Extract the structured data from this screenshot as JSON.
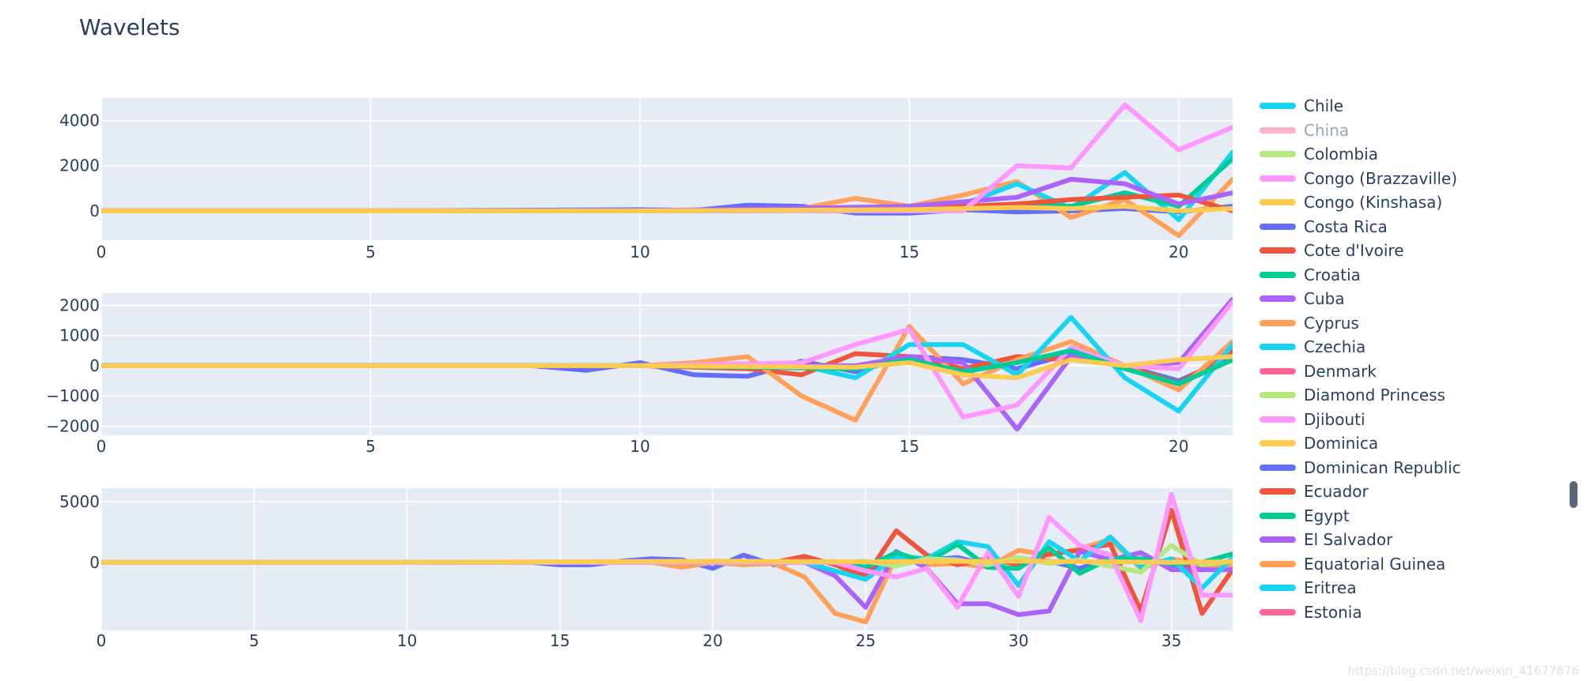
{
  "title": "Wavelets",
  "watermark": "https://blog.csdn.net/weixin_41677876",
  "colors": {
    "plot_bg": "#e5ecf6",
    "grid": "#ffffff",
    "text": "#2a3f5f"
  },
  "legend": {
    "items": [
      {
        "name": "Chile",
        "color": "#19d3f3",
        "hidden": false
      },
      {
        "name": "China",
        "color": "#ff6692",
        "hidden": true
      },
      {
        "name": "Colombia",
        "color": "#b6e880",
        "hidden": false
      },
      {
        "name": "Congo (Brazzaville)",
        "color": "#ff97ff",
        "hidden": false
      },
      {
        "name": "Congo (Kinshasa)",
        "color": "#fecb52",
        "hidden": false
      },
      {
        "name": "Costa Rica",
        "color": "#636efa",
        "hidden": false
      },
      {
        "name": "Cote d'Ivoire",
        "color": "#ef553b",
        "hidden": false
      },
      {
        "name": "Croatia",
        "color": "#00cc96",
        "hidden": false
      },
      {
        "name": "Cuba",
        "color": "#ab63fa",
        "hidden": false
      },
      {
        "name": "Cyprus",
        "color": "#ffa15a",
        "hidden": false
      },
      {
        "name": "Czechia",
        "color": "#19d3f3",
        "hidden": false
      },
      {
        "name": "Denmark",
        "color": "#ff6692",
        "hidden": false
      },
      {
        "name": "Diamond Princess",
        "color": "#b6e880",
        "hidden": false
      },
      {
        "name": "Djibouti",
        "color": "#ff97ff",
        "hidden": false
      },
      {
        "name": "Dominica",
        "color": "#fecb52",
        "hidden": false
      },
      {
        "name": "Dominican Republic",
        "color": "#636efa",
        "hidden": false
      },
      {
        "name": "Ecuador",
        "color": "#ef553b",
        "hidden": false
      },
      {
        "name": "Egypt",
        "color": "#00cc96",
        "hidden": false
      },
      {
        "name": "El Salvador",
        "color": "#ab63fa",
        "hidden": false
      },
      {
        "name": "Equatorial Guinea",
        "color": "#ffa15a",
        "hidden": false
      },
      {
        "name": "Eritrea",
        "color": "#19d3f3",
        "hidden": false
      },
      {
        "name": "Estonia",
        "color": "#ff6692",
        "hidden": false
      }
    ]
  },
  "chart_data": [
    {
      "type": "line",
      "x_range": [
        0,
        21
      ],
      "y_range": [
        -1300,
        5000
      ],
      "x_ticks": [
        0,
        5,
        10,
        15,
        20
      ],
      "y_ticks": [
        0,
        2000,
        4000
      ],
      "y_tick_labels": [
        "0",
        "2000",
        "4000"
      ],
      "series": [
        {
          "name": "Costa Rica",
          "color": "#636efa",
          "x": [
            0,
            5,
            10,
            11,
            12,
            13,
            14,
            15,
            16,
            17,
            18,
            19,
            20,
            21
          ],
          "y": [
            0,
            0,
            50,
            20,
            250,
            200,
            -100,
            -100,
            50,
            -50,
            0,
            100,
            -50,
            200
          ]
        },
        {
          "name": "Cyprus",
          "color": "#ffa15a",
          "x": [
            0,
            5,
            10,
            12,
            13,
            14,
            15,
            16,
            17,
            18,
            19,
            20,
            21
          ],
          "y": [
            0,
            0,
            0,
            50,
            100,
            550,
            200,
            700,
            1300,
            -300,
            500,
            -1100,
            1400
          ]
        },
        {
          "name": "Chile",
          "color": "#19d3f3",
          "x": [
            0,
            10,
            14,
            15,
            16,
            17,
            18,
            19,
            20,
            21
          ],
          "y": [
            0,
            0,
            50,
            150,
            300,
            1200,
            100,
            1700,
            -400,
            2600
          ]
        },
        {
          "name": "Croatia",
          "color": "#00cc96",
          "x": [
            0,
            10,
            14,
            15,
            16,
            17,
            18,
            19,
            20,
            21
          ],
          "y": [
            0,
            0,
            0,
            100,
            200,
            300,
            200,
            800,
            200,
            2300
          ]
        },
        {
          "name": "Cote d'Ivoire",
          "color": "#ef553b",
          "x": [
            0,
            10,
            15,
            16,
            17,
            18,
            19,
            20,
            21
          ],
          "y": [
            0,
            0,
            100,
            200,
            300,
            500,
            600,
            700,
            0
          ]
        },
        {
          "name": "Cuba",
          "color": "#ab63fa",
          "x": [
            0,
            10,
            15,
            16,
            17,
            18,
            19,
            20,
            21
          ],
          "y": [
            0,
            0,
            200,
            400,
            600,
            1400,
            1200,
            300,
            800
          ]
        },
        {
          "name": "Congo (Brazzaville)",
          "color": "#ff97ff",
          "x": [
            0,
            10,
            15,
            16,
            17,
            18,
            19,
            20,
            21
          ],
          "y": [
            0,
            0,
            0,
            0,
            2000,
            1900,
            4700,
            2700,
            3700
          ]
        },
        {
          "name": "Congo (Kinshasa)",
          "color": "#fecb52",
          "x": [
            0,
            10,
            15,
            16,
            17,
            18,
            19,
            20,
            21
          ],
          "y": [
            0,
            0,
            50,
            100,
            150,
            100,
            200,
            0,
            100
          ]
        }
      ]
    },
    {
      "type": "line",
      "x_range": [
        0,
        21
      ],
      "y_range": [
        -2300,
        2400
      ],
      "x_ticks": [
        0,
        5,
        10,
        15,
        20
      ],
      "y_ticks": [
        2000,
        1000,
        0,
        -1000,
        -2000
      ],
      "y_tick_labels": [
        "2000",
        "1000",
        "0",
        "−1000",
        "−2000"
      ],
      "series": [
        {
          "name": "Costa Rica",
          "color": "#636efa",
          "x": [
            0,
            5,
            8,
            9,
            10,
            11,
            12,
            13,
            14,
            15,
            16,
            17,
            18,
            19,
            20,
            21
          ],
          "y": [
            0,
            0,
            0,
            -150,
            100,
            -300,
            -350,
            150,
            -200,
            300,
            200,
            -100,
            400,
            0,
            -500,
            300
          ]
        },
        {
          "name": "Cote d'Ivoire",
          "color": "#ef553b",
          "x": [
            0,
            10,
            12,
            13,
            14,
            15,
            16,
            17,
            18,
            19,
            20,
            21
          ],
          "y": [
            0,
            0,
            -100,
            -300,
            400,
            300,
            -100,
            300,
            200,
            0,
            -600,
            500
          ]
        },
        {
          "name": "Cyprus",
          "color": "#ffa15a",
          "x": [
            0,
            10,
            11,
            12,
            13,
            14,
            15,
            16,
            17,
            18,
            19,
            20,
            21
          ],
          "y": [
            0,
            0,
            100,
            300,
            -1000,
            -1800,
            1300,
            -600,
            200,
            800,
            0,
            -800,
            800
          ]
        },
        {
          "name": "Chile",
          "color": "#19d3f3",
          "x": [
            0,
            10,
            13,
            14,
            15,
            16,
            17,
            18,
            19,
            20,
            21
          ],
          "y": [
            0,
            0,
            0,
            -400,
            700,
            700,
            -300,
            1600,
            -400,
            -1500,
            700
          ]
        },
        {
          "name": "Cuba",
          "color": "#ab63fa",
          "x": [
            0,
            10,
            14,
            15,
            16,
            17,
            18,
            19,
            20,
            21
          ],
          "y": [
            0,
            0,
            0,
            300,
            100,
            -2100,
            300,
            0,
            100,
            2200
          ]
        },
        {
          "name": "Congo (Brazzaville)",
          "color": "#ff97ff",
          "x": [
            0,
            10,
            13,
            14,
            15,
            16,
            17,
            18,
            19,
            20,
            21
          ],
          "y": [
            0,
            0,
            100,
            700,
            1200,
            -1700,
            -1300,
            600,
            0,
            -100,
            2100
          ]
        },
        {
          "name": "Croatia",
          "color": "#00cc96",
          "x": [
            0,
            10,
            14,
            15,
            16,
            17,
            18,
            19,
            20,
            21
          ],
          "y": [
            0,
            0,
            -100,
            200,
            -200,
            100,
            500,
            -100,
            -600,
            200
          ]
        },
        {
          "name": "Congo (Kinshasa)",
          "color": "#fecb52",
          "x": [
            0,
            10,
            14,
            15,
            16,
            17,
            18,
            19,
            20,
            21
          ],
          "y": [
            0,
            0,
            -50,
            100,
            -300,
            -400,
            200,
            0,
            200,
            300
          ]
        }
      ]
    },
    {
      "type": "line",
      "x_range": [
        0,
        37
      ],
      "y_range": [
        -5600,
        6100
      ],
      "x_ticks": [
        0,
        5,
        10,
        15,
        20,
        25,
        30,
        35
      ],
      "y_ticks": [
        5000,
        0
      ],
      "y_tick_labels": [
        "5000",
        "0"
      ],
      "series": [
        {
          "name": "Costa Rica",
          "color": "#636efa",
          "x": [
            0,
            14,
            15,
            16,
            17,
            18,
            19,
            20,
            21,
            22,
            23,
            24,
            25,
            26,
            27,
            28,
            29,
            30,
            31,
            32,
            33,
            34,
            35,
            36,
            37
          ],
          "y": [
            0,
            0,
            -200,
            -200,
            100,
            300,
            200,
            -500,
            600,
            -200,
            200,
            -100,
            -800,
            300,
            200,
            400,
            -200,
            300,
            100,
            -500,
            400,
            200,
            -200,
            -600,
            -200
          ]
        },
        {
          "name": "Cyprus",
          "color": "#ffa15a",
          "x": [
            0,
            18,
            19,
            20,
            21,
            22,
            23,
            24,
            25,
            26,
            27,
            28,
            29,
            30,
            31,
            32,
            33,
            34,
            35,
            36,
            37
          ],
          "y": [
            0,
            0,
            -400,
            0,
            -200,
            -100,
            -1200,
            -4200,
            -4900,
            500,
            -200,
            -100,
            -400,
            1000,
            600,
            1100,
            1900,
            -500,
            300,
            -200,
            -300
          ]
        },
        {
          "name": "Ecuador",
          "color": "#ef553b",
          "x": [
            0,
            22,
            23,
            24,
            25,
            26,
            27,
            28,
            29,
            30,
            31,
            32,
            33,
            34,
            35,
            36,
            37
          ],
          "y": [
            0,
            0,
            500,
            -200,
            -1200,
            2600,
            600,
            -200,
            300,
            -200,
            700,
            1000,
            1500,
            -4000,
            4300,
            -4200,
            -600
          ]
        },
        {
          "name": "El Salvador",
          "color": "#ab63fa",
          "x": [
            0,
            23,
            24,
            25,
            26,
            27,
            28,
            29,
            30,
            31,
            32,
            33,
            34,
            35,
            36,
            37
          ],
          "y": [
            0,
            0,
            -1100,
            -3700,
            900,
            -500,
            -3400,
            -3400,
            -4300,
            -4000,
            900,
            200,
            800,
            -600,
            -600,
            -600
          ]
        },
        {
          "name": "Chile",
          "color": "#19d3f3",
          "x": [
            0,
            23,
            24,
            25,
            26,
            27,
            28,
            29,
            30,
            31,
            32,
            33,
            34,
            35,
            36,
            37
          ],
          "y": [
            0,
            0,
            -700,
            -1400,
            500,
            300,
            1700,
            1300,
            -1900,
            1700,
            100,
            2100,
            -400,
            300,
            -2100,
            400
          ]
        },
        {
          "name": "Egypt",
          "color": "#00cc96",
          "x": [
            0,
            24,
            25,
            26,
            27,
            28,
            29,
            30,
            31,
            32,
            33,
            34,
            35,
            36,
            37
          ],
          "y": [
            0,
            0,
            -400,
            800,
            0,
            1500,
            -400,
            -500,
            1200,
            -900,
            300,
            300,
            -100,
            0,
            700
          ]
        },
        {
          "name": "Diamond Princess",
          "color": "#b6e880",
          "x": [
            0,
            24,
            25,
            26,
            27,
            28,
            29,
            30,
            31,
            32,
            33,
            34,
            35,
            36,
            37
          ],
          "y": [
            0,
            0,
            100,
            -300,
            300,
            200,
            -200,
            400,
            -100,
            200,
            -300,
            -800,
            1400,
            -200,
            100
          ]
        },
        {
          "name": "Djibouti",
          "color": "#ff97ff",
          "x": [
            0,
            24,
            25,
            26,
            27,
            28,
            29,
            30,
            31,
            32,
            33,
            34,
            35,
            36,
            37
          ],
          "y": [
            0,
            0,
            -700,
            -1200,
            -500,
            -3700,
            800,
            -2800,
            3700,
            1400,
            600,
            -4800,
            5600,
            -2700,
            -2700
          ]
        },
        {
          "name": "Dominica",
          "color": "#fecb52",
          "x": [
            0,
            5,
            10,
            15,
            20,
            25,
            30,
            35,
            37
          ],
          "y": [
            0,
            0,
            0,
            50,
            100,
            50,
            100,
            0,
            50
          ]
        }
      ]
    }
  ]
}
